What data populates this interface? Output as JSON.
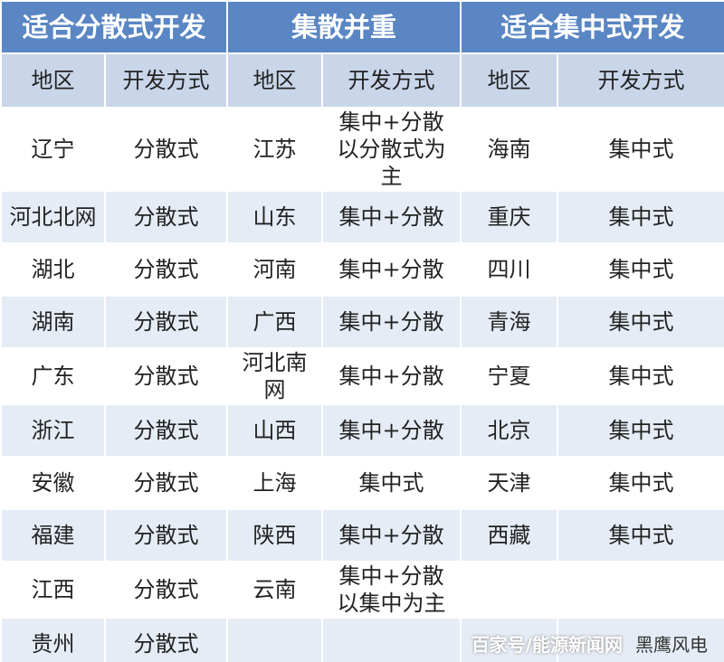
{
  "header": {
    "groups": [
      "适合分散式开发",
      "集散并重",
      "适合集中式开发"
    ]
  },
  "table": {
    "columns": [
      "地区",
      "开发方式",
      "地区",
      "开发方式",
      "地区",
      "开发方式"
    ],
    "rows": [
      [
        "辽宁",
        "分散式",
        "江苏",
        "集中+分散以分散式为主",
        "海南",
        "集中式"
      ],
      [
        "河北北网",
        "分散式",
        "山东",
        "集中+分散",
        "重庆",
        "集中式"
      ],
      [
        "湖北",
        "分散式",
        "河南",
        "集中+分散",
        "四川",
        "集中式"
      ],
      [
        "湖南",
        "分散式",
        "广西",
        "集中+分散",
        "青海",
        "集中式"
      ],
      [
        "广东",
        "分散式",
        "河北南网",
        "集中+分散",
        "宁夏",
        "集中式"
      ],
      [
        "浙江",
        "分散式",
        "山西",
        "集中+分散",
        "北京",
        "集中式"
      ],
      [
        "安徽",
        "分散式",
        "上海",
        "集中式",
        "天津",
        "集中式"
      ],
      [
        "福建",
        "分散式",
        "陕西",
        "集中+分散",
        "西藏",
        "集中式"
      ],
      [
        "江西",
        "分散式",
        "云南",
        "集中+分散以集中为主",
        null,
        null
      ],
      [
        "贵州",
        "分散式",
        null,
        null,
        null,
        null
      ]
    ]
  },
  "watermark": {
    "source": "百家号/能源新闻网",
    "account": "黑鹰风电"
  }
}
